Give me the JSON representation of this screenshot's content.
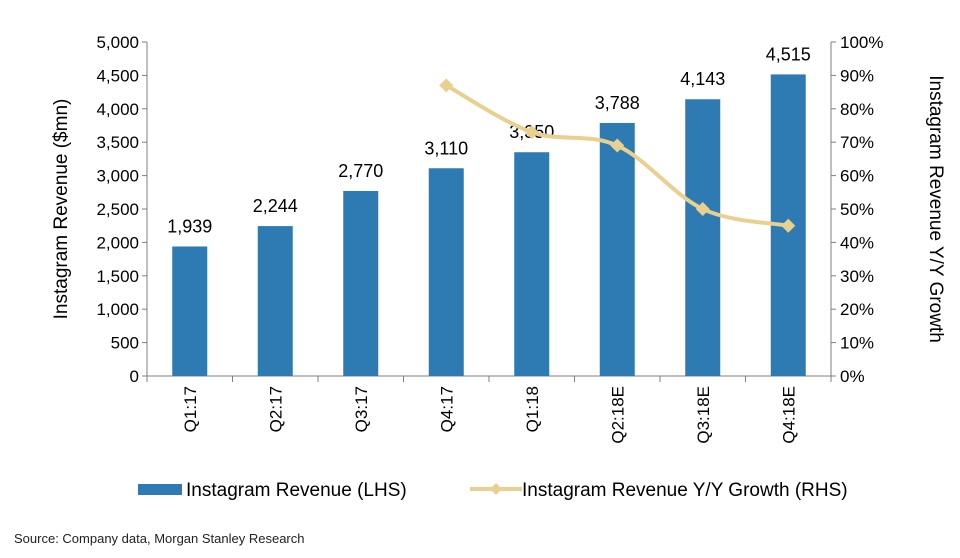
{
  "chart_data": {
    "type": "bar+line",
    "categories": [
      "Q1:17",
      "Q2:17",
      "Q3:17",
      "Q4:17",
      "Q1:18",
      "Q2:18E",
      "Q3:18E",
      "Q4:18E"
    ],
    "series": [
      {
        "name": "Instagram Revenue (LHS)",
        "type": "bar",
        "axis": "left",
        "color": "#2e7bb4",
        "values": [
          1939,
          2244,
          2770,
          3110,
          3350,
          3788,
          4143,
          4515
        ],
        "labels": [
          "1,939",
          "2,244",
          "2,770",
          "3,110",
          "3,350",
          "3,788",
          "4,143",
          "4,515"
        ]
      },
      {
        "name": "Instagram Revenue Y/Y Growth (RHS)",
        "type": "line",
        "axis": "right",
        "color": "#ead08e",
        "values": [
          null,
          null,
          null,
          87,
          73,
          69,
          50,
          45
        ]
      }
    ],
    "left_axis": {
      "title": "Instagram Revenue ($mn)",
      "ylim": [
        0,
        5000
      ],
      "ticks": [
        "0",
        "500",
        "1,000",
        "1,500",
        "2,000",
        "2,500",
        "3,000",
        "3,500",
        "4,000",
        "4,500",
        "5,000"
      ]
    },
    "right_axis": {
      "title": "Instagram Revenue Y/Y Growth",
      "ylim": [
        0,
        100
      ],
      "ticks": [
        "0%",
        "10%",
        "20%",
        "30%",
        "40%",
        "50%",
        "60%",
        "70%",
        "80%",
        "90%",
        "100%"
      ]
    },
    "legend_position": "bottom",
    "grid": false
  },
  "footer": {
    "source": "Source: Company data, Morgan Stanley Research"
  }
}
